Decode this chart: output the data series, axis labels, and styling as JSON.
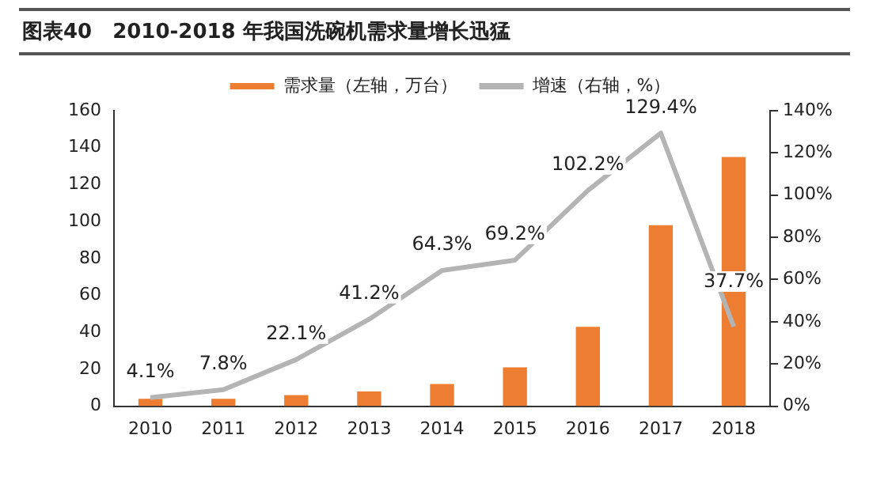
{
  "chart_data": {
    "type": "bar",
    "title": "图表40　2010-2018 年我国洗碗机需求量增长迅猛",
    "categories": [
      "2010",
      "2011",
      "2012",
      "2013",
      "2014",
      "2015",
      "2016",
      "2017",
      "2018"
    ],
    "series": [
      {
        "name": "需求量（左轴，万台）",
        "color": "#ed7d31",
        "values": [
          4,
          4,
          6,
          8,
          12,
          21,
          43,
          98,
          135
        ]
      },
      {
        "name": "增速（右轴，%）",
        "type": "line",
        "axis": "y2",
        "color": "#b4b4b4",
        "marker": "none",
        "values": [
          4.1,
          7.8,
          22.1,
          41.2,
          64.3,
          69.2,
          102.2,
          129.4,
          37.7
        ],
        "value_labels": [
          "4.1%",
          "7.8%",
          "22.1%",
          "41.2%",
          "64.3%",
          "69.2%",
          "102.2%",
          "129.4%",
          "37.7%"
        ]
      }
    ],
    "ylim": [
      0,
      160
    ],
    "yticks": [
      0,
      20,
      40,
      60,
      80,
      100,
      120,
      140,
      160
    ],
    "y2lim": [
      0,
      140
    ],
    "y2ticks": [
      {
        "value": 0,
        "label": "0%"
      },
      {
        "value": 20,
        "label": "20%"
      },
      {
        "value": 40,
        "label": "40%"
      },
      {
        "value": 60,
        "label": "60%"
      },
      {
        "value": 80,
        "label": "80%"
      },
      {
        "value": 100,
        "label": "100%"
      },
      {
        "value": 120,
        "label": "120%"
      },
      {
        "value": 140,
        "label": "140%"
      }
    ],
    "grid": false,
    "legend": "top"
  }
}
